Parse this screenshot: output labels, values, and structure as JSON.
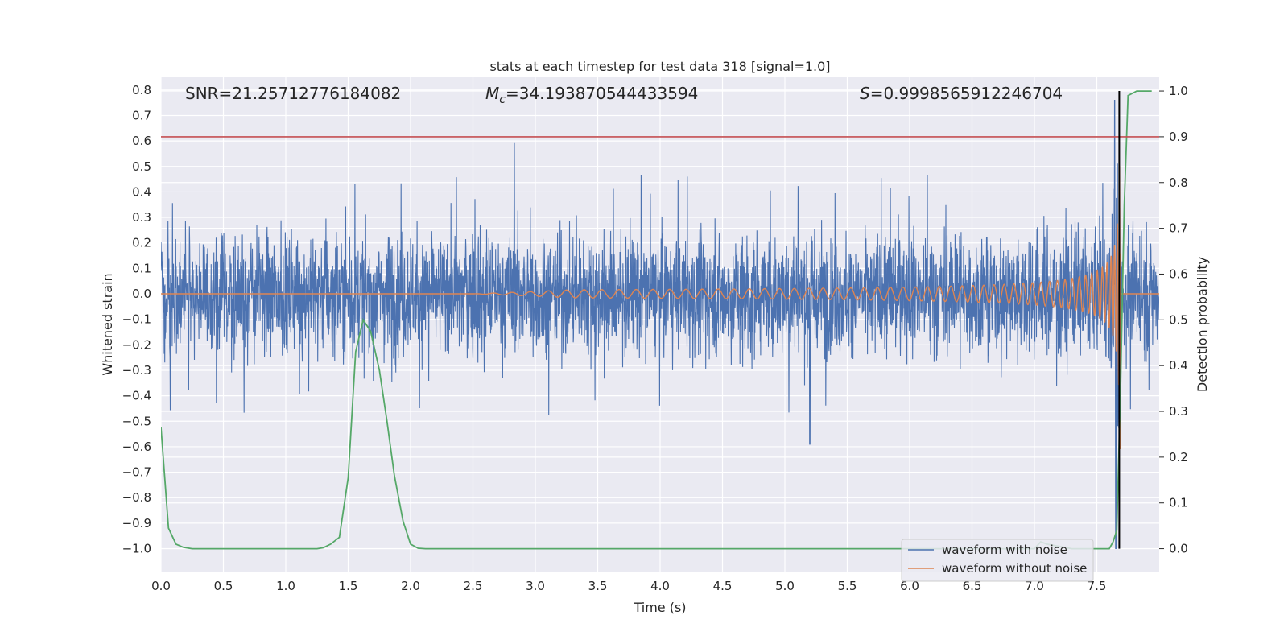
{
  "chart_data": {
    "type": "line",
    "title": "stats at each timestep for test data 318 [signal=1.0]",
    "xlabel": "Time (s)",
    "ylabel": "Whitened strain",
    "y2label": "Detection probability",
    "xlim": [
      0.0,
      8.0
    ],
    "ylim": [
      -1.09,
      0.85
    ],
    "y2lim": [
      -0.05,
      1.03
    ],
    "x_ticks": [
      "0.0",
      "0.5",
      "1.0",
      "1.5",
      "2.0",
      "2.5",
      "3.0",
      "3.5",
      "4.0",
      "4.5",
      "5.0",
      "5.5",
      "6.0",
      "6.5",
      "7.0",
      "7.5"
    ],
    "y_ticks": [
      "0.8",
      "0.7",
      "0.6",
      "0.5",
      "0.4",
      "0.3",
      "0.2",
      "0.1",
      "0.0",
      "−0.1",
      "−0.2",
      "−0.3",
      "−0.4",
      "−0.5",
      "−0.6",
      "−0.7",
      "−0.8",
      "−0.9",
      "−1.0"
    ],
    "y2_ticks": [
      "1.0",
      "0.9",
      "0.8",
      "0.7",
      "0.6",
      "0.5",
      "0.4",
      "0.3",
      "0.2",
      "0.1",
      "0.0"
    ],
    "grid": true,
    "legend_position": "lower-right",
    "stats": {
      "snr": "SNR=21.25712776184082",
      "mc_symbol": "M",
      "mc_sub": "c",
      "mc_value": "=34.193870544433594",
      "s_symbol": "S",
      "s_value": "=0.9998565912246704"
    },
    "threshold_line": {
      "y": 0.9,
      "axis": "right",
      "color": "#c44e52"
    },
    "merger_marker_x": 7.68,
    "series": [
      {
        "name": "waveform with noise",
        "color": "#4c72b0",
        "axis": "left",
        "summary": "white noise, typical amplitude ±0.25, peaks up to 0.59 near t=2.83 and down to −0.59 near t=5.2; spike from 0.76 to −1.0 at t≈7.65"
      },
      {
        "name": "waveform without noise",
        "color": "#dd8452",
        "axis": "left",
        "summary": "chirp starting near t=3.3, amplitude growing to 0.69 at t≈7.66, ending at t≈7.69",
        "chirp_end": 7.69
      },
      {
        "color": "#55a868",
        "axis": "right",
        "x": [
          0.0,
          0.06,
          0.12,
          0.18,
          0.25,
          0.5,
          1.0,
          1.25,
          1.3,
          1.36,
          1.43,
          1.5,
          1.56,
          1.62,
          1.68,
          1.75,
          1.81,
          1.87,
          1.94,
          2.0,
          2.06,
          2.12,
          3.0,
          4.0,
          5.0,
          6.0,
          7.0,
          7.05,
          7.1,
          7.3,
          7.6,
          7.63,
          7.66,
          7.69,
          7.72,
          7.75,
          7.82,
          7.88,
          7.94
        ],
        "values": [
          0.265,
          0.045,
          0.01,
          0.003,
          0.0,
          0.0,
          0.0,
          0.0,
          0.002,
          0.01,
          0.025,
          0.155,
          0.43,
          0.5,
          0.475,
          0.39,
          0.28,
          0.16,
          0.06,
          0.01,
          0.001,
          0.0,
          0.0,
          0.0,
          0.0,
          0.0,
          0.0,
          0.015,
          0.01,
          0.0,
          0.0,
          0.015,
          0.04,
          0.35,
          0.75,
          0.99,
          1.0,
          1.0,
          1.0
        ]
      }
    ]
  }
}
